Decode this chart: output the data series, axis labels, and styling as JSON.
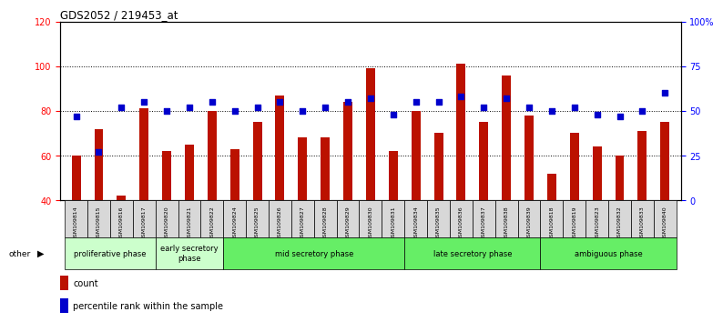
{
  "title": "GDS2052 / 219453_at",
  "samples": [
    "GSM109814",
    "GSM109815",
    "GSM109816",
    "GSM109817",
    "GSM109820",
    "GSM109821",
    "GSM109822",
    "GSM109824",
    "GSM109825",
    "GSM109826",
    "GSM109827",
    "GSM109828",
    "GSM109829",
    "GSM109830",
    "GSM109831",
    "GSM109834",
    "GSM109835",
    "GSM109836",
    "GSM109837",
    "GSM109838",
    "GSM109839",
    "GSM109818",
    "GSM109819",
    "GSM109823",
    "GSM109832",
    "GSM109833",
    "GSM109840"
  ],
  "count_values": [
    60,
    72,
    42,
    81,
    62,
    65,
    80,
    63,
    75,
    87,
    68,
    68,
    84,
    99,
    62,
    80,
    70,
    101,
    75,
    96,
    78,
    52,
    70,
    64,
    60,
    71,
    75
  ],
  "percentile_values": [
    47,
    27,
    52,
    55,
    50,
    52,
    55,
    50,
    52,
    55,
    50,
    52,
    55,
    57,
    48,
    55,
    55,
    58,
    52,
    57,
    52,
    50,
    52,
    48,
    47,
    50,
    60
  ],
  "phase_defs": [
    {
      "label": "proliferative phase",
      "color": "#ccffcc",
      "start": 0,
      "end": 4
    },
    {
      "label": "early secretory\nphase",
      "color": "#ccffcc",
      "start": 4,
      "end": 7
    },
    {
      "label": "mid secretory phase",
      "color": "#66ee66",
      "start": 7,
      "end": 15
    },
    {
      "label": "late secretory phase",
      "color": "#66ee66",
      "start": 15,
      "end": 21
    },
    {
      "label": "ambiguous phase",
      "color": "#66ee66",
      "start": 21,
      "end": 27
    }
  ],
  "ylim_left": [
    40,
    120
  ],
  "ylim_right": [
    0,
    100
  ],
  "yticks_left": [
    40,
    60,
    80,
    100,
    120
  ],
  "yticks_right": [
    0,
    25,
    50,
    75,
    100
  ],
  "ytick_labels_right": [
    "0",
    "25",
    "50",
    "75",
    "100%"
  ],
  "bar_color": "#bb1100",
  "dot_color": "#0000cc",
  "bar_width": 0.4
}
